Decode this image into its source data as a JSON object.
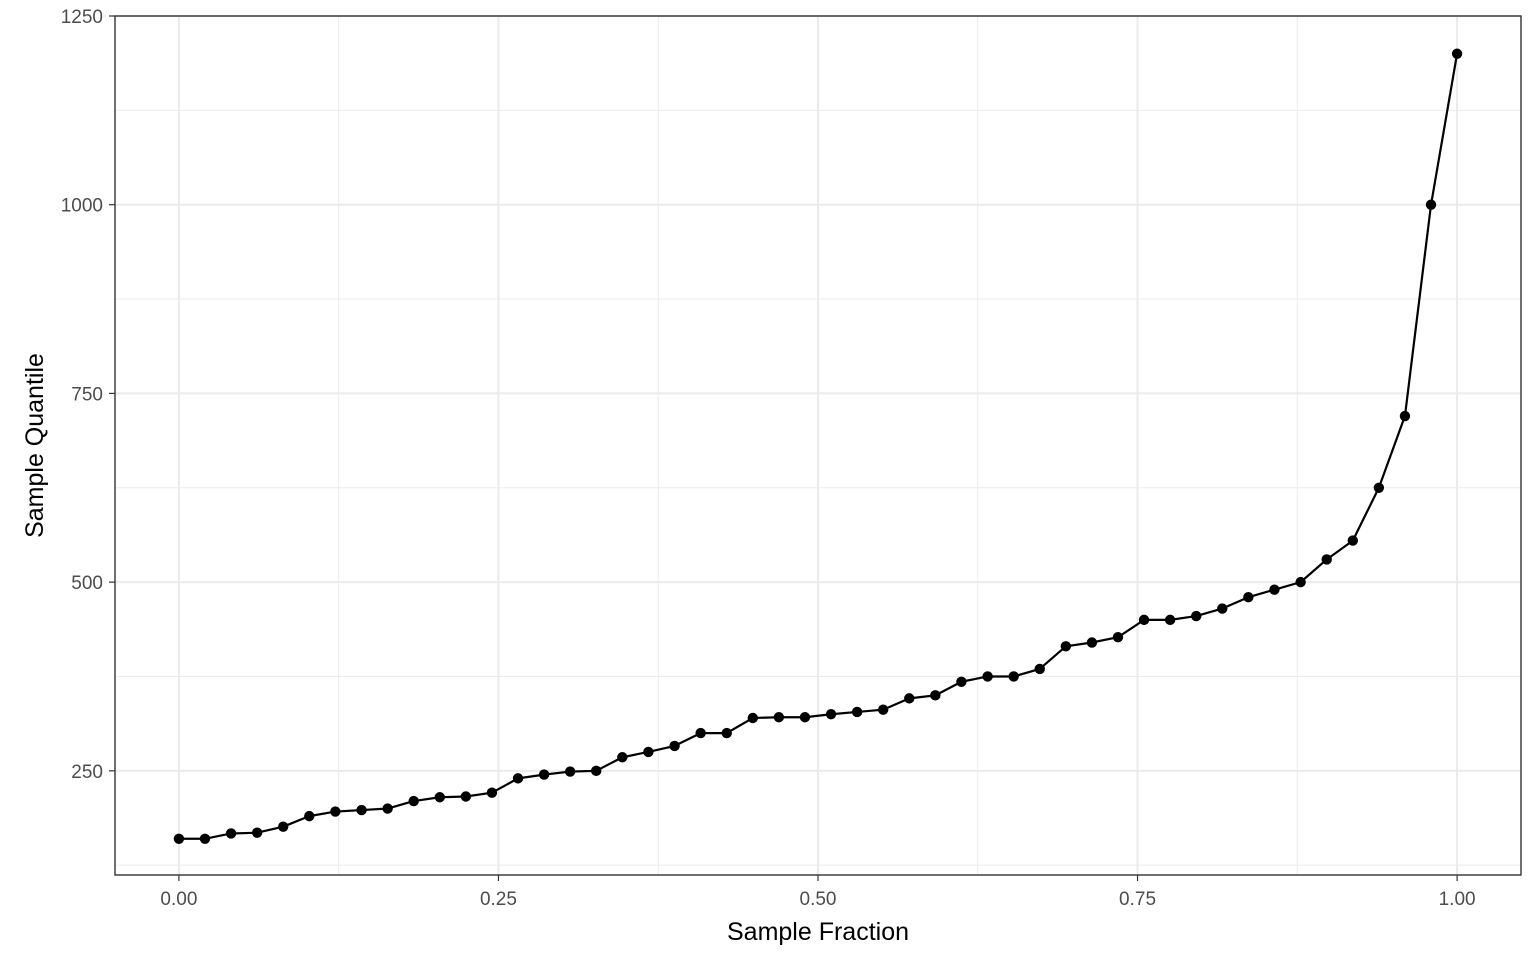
{
  "chart_data": {
    "type": "line",
    "title": "",
    "xlabel": "Sample Fraction",
    "ylabel": "Sample Quantile",
    "xlim": [
      -0.05,
      1.05
    ],
    "ylim": [
      112,
      1250
    ],
    "x_ticks": [
      0,
      0.25,
      0.5,
      0.75,
      1
    ],
    "x_tick_labels": [
      "0.00",
      "0.25",
      "0.50",
      "0.75",
      "1.00"
    ],
    "x_minor_ticks": [
      0.125,
      0.375,
      0.625,
      0.875
    ],
    "y_ticks": [
      250,
      500,
      750,
      1000,
      1250
    ],
    "y_tick_labels": [
      "250",
      "500",
      "750",
      "1000",
      "1250"
    ],
    "y_minor_ticks": [
      125,
      375,
      625,
      875,
      1125
    ],
    "grid": true,
    "legend": "none",
    "points_shown": true,
    "series": [
      {
        "x": [
          0.0,
          0.0204,
          0.0408,
          0.0612,
          0.0816,
          0.102,
          0.1224,
          0.1429,
          0.1633,
          0.1837,
          0.2041,
          0.2245,
          0.2449,
          0.2653,
          0.2857,
          0.3061,
          0.3265,
          0.3469,
          0.3673,
          0.3878,
          0.4082,
          0.4286,
          0.449,
          0.4694,
          0.4898,
          0.5102,
          0.5306,
          0.551,
          0.5714,
          0.5918,
          0.6122,
          0.6327,
          0.6531,
          0.6735,
          0.6939,
          0.7143,
          0.7347,
          0.7551,
          0.7755,
          0.7959,
          0.8163,
          0.8367,
          0.8571,
          0.8776,
          0.898,
          0.9184,
          0.9388,
          0.9592,
          0.9796,
          1.0
        ],
        "y": [
          160,
          160,
          167,
          168,
          176,
          190,
          196,
          198,
          200,
          210,
          215,
          216,
          221,
          240,
          245,
          249,
          250,
          268,
          275,
          283,
          300,
          300,
          320,
          321,
          321,
          325,
          328,
          331,
          346,
          350,
          368,
          375,
          375,
          385,
          415,
          420,
          427,
          450,
          450,
          455,
          465,
          480,
          490,
          500,
          530,
          555,
          625,
          720,
          1000,
          1200
        ]
      }
    ]
  },
  "colors": {
    "background": "#ffffff",
    "grid": "#ebebeb",
    "series": "#000000",
    "tick_label": "#4d4d4d",
    "border": "#333333"
  }
}
